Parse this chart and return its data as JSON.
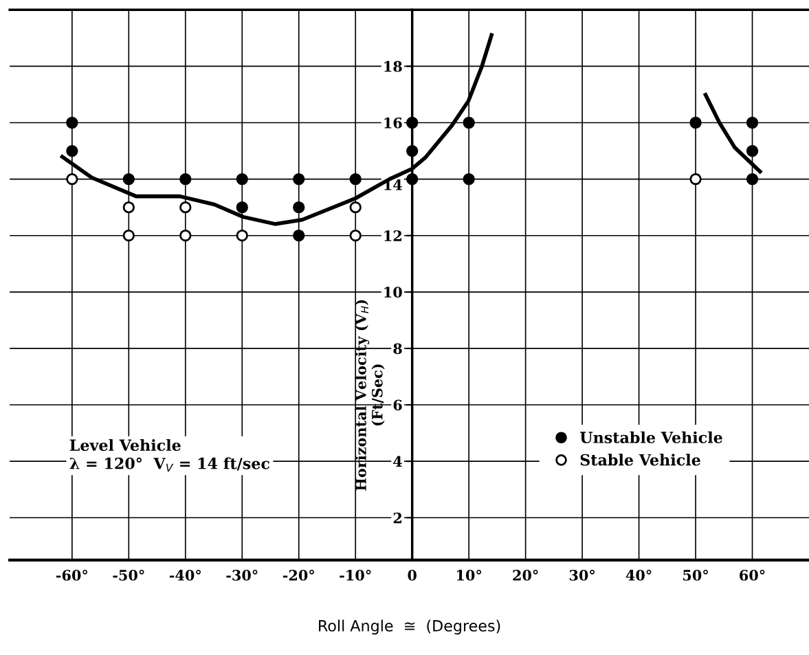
{
  "chart_data": {
    "type": "scatter",
    "xlabel": "Roll Angle  ≅  (Degrees)",
    "ylabel": "Horizontal Velocity (V$_{H}$)\n(Ft/Sec)",
    "annotations": [
      "Level Vehicle\nλ = 120°  V$_{V}$ = 14 ft/sec"
    ],
    "xlim": [
      -71,
      70
    ],
    "ylim": [
      0.5,
      20
    ],
    "xticks": [
      {
        "value": -60,
        "label": "-60°"
      },
      {
        "value": -50,
        "label": "-50°"
      },
      {
        "value": -40,
        "label": "-40°"
      },
      {
        "value": -30,
        "label": "-30°"
      },
      {
        "value": -20,
        "label": "-20°"
      },
      {
        "value": -10,
        "label": "-10°"
      },
      0,
      {
        "value": 10,
        "label": "10°"
      },
      {
        "value": 20,
        "label": "20°"
      },
      {
        "value": 30,
        "label": "30°"
      },
      {
        "value": 40,
        "label": "40°"
      },
      {
        "value": 50,
        "label": "50°"
      },
      {
        "value": 60,
        "label": "60°"
      }
    ],
    "yticks": [
      2,
      4,
      6,
      8,
      10,
      12,
      14,
      16,
      18
    ],
    "grid": true,
    "legend": "right",
    "series": [
      {
        "name": "Unstable Vehicle",
        "marker": "circle",
        "color": "#000000",
        "x": [
          -60,
          -60,
          -50,
          -40,
          -30,
          -30,
          -20,
          -20,
          -20,
          -10,
          0,
          0,
          0,
          10,
          10,
          50,
          60,
          60,
          60
        ],
        "values": [
          16,
          15,
          14,
          14,
          14,
          13,
          14,
          13,
          12,
          14,
          16,
          15,
          14,
          16,
          14,
          16,
          16,
          15,
          14
        ]
      },
      {
        "name": "Stable Vehicle",
        "marker": "circle",
        "color": "#ffffff",
        "x": [
          -60,
          -50,
          -50,
          -40,
          -40,
          -30,
          -10,
          -10,
          50
        ],
        "values": [
          14,
          13,
          12,
          13,
          12,
          12,
          13,
          12,
          14
        ]
      },
      {
        "type": "line",
        "color": "#000000",
        "x": [
          -62.0,
          -56.5,
          -48.7,
          -41.0,
          -34.9,
          -29.8,
          -24.2,
          -19.4,
          -10.0,
          -4.0,
          0,
          2.3,
          7.0,
          9.9,
          12.3,
          14.1
        ],
        "values": [
          14.83,
          14.05,
          13.39,
          13.39,
          13.1,
          12.66,
          12.41,
          12.56,
          13.32,
          14.0,
          14.37,
          14.76,
          15.9,
          16.76,
          18.0,
          19.17
        ]
      },
      {
        "type": "line",
        "color": "#000000",
        "x": [
          51.6,
          54.2,
          56.9,
          61.6
        ],
        "values": [
          17.05,
          16.0,
          15.12,
          14.22
        ]
      }
    ]
  }
}
